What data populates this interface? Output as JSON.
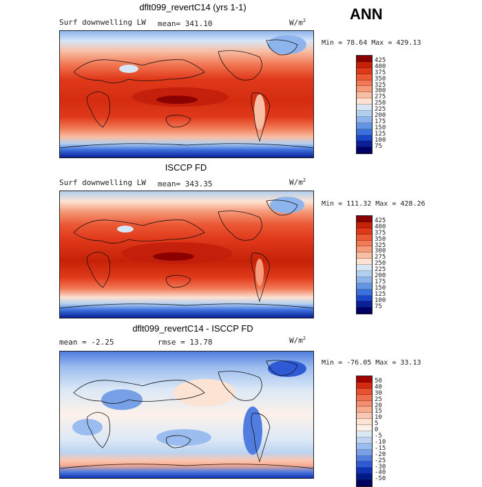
{
  "season": "ANN",
  "panels": [
    {
      "title": "dflt099_revertC14 (yrs 1-1)",
      "left_label": "Surf downwelling LW",
      "center_label": "mean= 341.10",
      "units": "W/m",
      "units_sup": "2",
      "minmax": "Min =  78.64 Max = 429.13",
      "colorbar": {
        "levels": [
          "425",
          "400",
          "375",
          "350",
          "325",
          "300",
          "275",
          "250",
          "225",
          "200",
          "175",
          "150",
          "125",
          "100",
          "75"
        ],
        "colors": [
          "#8b0000",
          "#c62208",
          "#e0391a",
          "#ec5a36",
          "#f27a56",
          "#f59a7a",
          "#f8bea4",
          "#fde2d3",
          "#d6e6f6",
          "#b2cff0",
          "#8db4ec",
          "#6494e4",
          "#3b6fdc",
          "#1a46c8",
          "#0a1f96",
          "#000066"
        ]
      }
    },
    {
      "title": "ISCCP FD",
      "left_label": "Surf downwelling LW",
      "center_label": "mean= 343.35",
      "units": "W/m",
      "units_sup": "2",
      "minmax": "Min = 111.32 Max = 428.26",
      "colorbar": {
        "levels": [
          "425",
          "400",
          "375",
          "350",
          "325",
          "300",
          "275",
          "250",
          "225",
          "200",
          "175",
          "150",
          "125",
          "100",
          "75"
        ],
        "colors": [
          "#8b0000",
          "#c62208",
          "#e0391a",
          "#ec5a36",
          "#f27a56",
          "#f59a7a",
          "#f8bea4",
          "#fde2d3",
          "#d6e6f6",
          "#b2cff0",
          "#8db4ec",
          "#6494e4",
          "#3b6fdc",
          "#1a46c8",
          "#0a1f96",
          "#000066"
        ]
      }
    },
    {
      "title": "dflt099_revertC14 - ISCCP FD",
      "left_label": "mean =   -2.25",
      "center_label": "rmse =  13.78",
      "units": "W/m",
      "units_sup": "2",
      "minmax": "Min = -76.05 Max =  33.13",
      "colorbar": {
        "levels": [
          "50",
          "40",
          "30",
          "25",
          "20",
          "15",
          "10",
          "5",
          "0",
          "-5",
          "-10",
          "-15",
          "-20",
          "-25",
          "-30",
          "-40",
          "-50"
        ],
        "colors": [
          "#a40000",
          "#d42a10",
          "#e9502e",
          "#f0704e",
          "#f48e6e",
          "#f7ab8f",
          "#f9c7b1",
          "#fde3d4",
          "#fdf1ea",
          "#dbe8f6",
          "#bcd3f1",
          "#9bbcee",
          "#78a0e6",
          "#507ddf",
          "#2e5ad6",
          "#1032b4",
          "#001a86",
          "#00005e"
        ]
      }
    }
  ]
}
